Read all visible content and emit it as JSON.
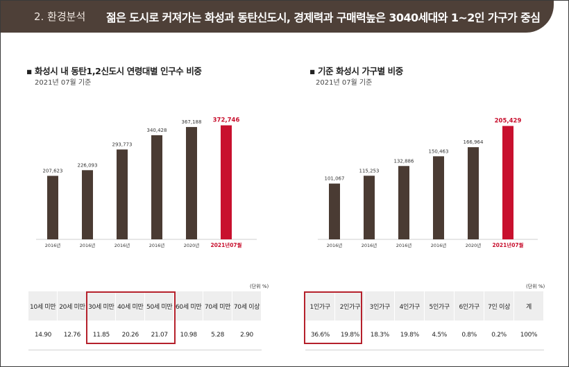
{
  "header": {
    "section": "2. 환경분석",
    "headline": "젊은 도시로 커져가는 화성과 동탄신도시, 경제력과 구매력높은 3040세대와 1~2인 가구가 중심"
  },
  "left_panel": {
    "title": "화성시 내 동탄1,2신도시 연령대별 인구수 비중",
    "subtitle": "2021년 07월 기준",
    "unit": "(단위 %)"
  },
  "right_panel": {
    "title": "기준 화성시 가구별 비중",
    "subtitle": "2021년 07월 기준",
    "unit": "(단위 %)"
  },
  "colors": {
    "bar": "#4a3b33",
    "highlight": "#c8102e",
    "header": "#4e4038"
  },
  "chart_data": [
    {
      "type": "bar",
      "title": "화성시 내 동탄1,2신도시 연령대별 인구수 비중",
      "categories": [
        "2016년",
        "2016년",
        "2016년",
        "2016년",
        "2020년",
        "2021년07월"
      ],
      "values": [
        207623,
        226093,
        293773,
        340428,
        367188,
        372746
      ],
      "value_labels": [
        "207,623",
        "226,093",
        "293,773",
        "340,428",
        "367,188",
        "372,746"
      ],
      "highlight_index": 5,
      "ylim": [
        0,
        415000
      ]
    },
    {
      "type": "bar",
      "title": "기준 화성시 가구별 비중",
      "categories": [
        "2016년",
        "2016년",
        "2016년",
        "2016년",
        "2020년",
        "2021년07월"
      ],
      "values": [
        101067,
        115253,
        132886,
        150463,
        166964,
        205429
      ],
      "value_labels": [
        "101,067",
        "115,253",
        "132,886",
        "150,463",
        "166,964",
        "205,429"
      ],
      "highlight_index": 5,
      "ylim": [
        0,
        230000
      ]
    },
    {
      "type": "table",
      "columns": [
        "10세 미만",
        "20세 미만",
        "30세 미만",
        "40세 미만",
        "50세 미만",
        "60세 미만",
        "70세 미만",
        "70세 이상"
      ],
      "values": [
        "14.90",
        "12.76",
        "11.85",
        "20.26",
        "21.07",
        "10.98",
        "5.28",
        "2.90"
      ],
      "highlight_columns": [
        2,
        3,
        4
      ]
    },
    {
      "type": "table",
      "columns": [
        "1인가구",
        "2인가구",
        "3인가구",
        "4인가구",
        "5인가구",
        "6인가구",
        "7인 이상",
        "계"
      ],
      "values": [
        "36.6%",
        "19.8%",
        "18.3%",
        "19.8%",
        "4.5%",
        "0.8%",
        "0.2%",
        "100%"
      ],
      "highlight_columns": [
        0,
        1
      ]
    }
  ]
}
